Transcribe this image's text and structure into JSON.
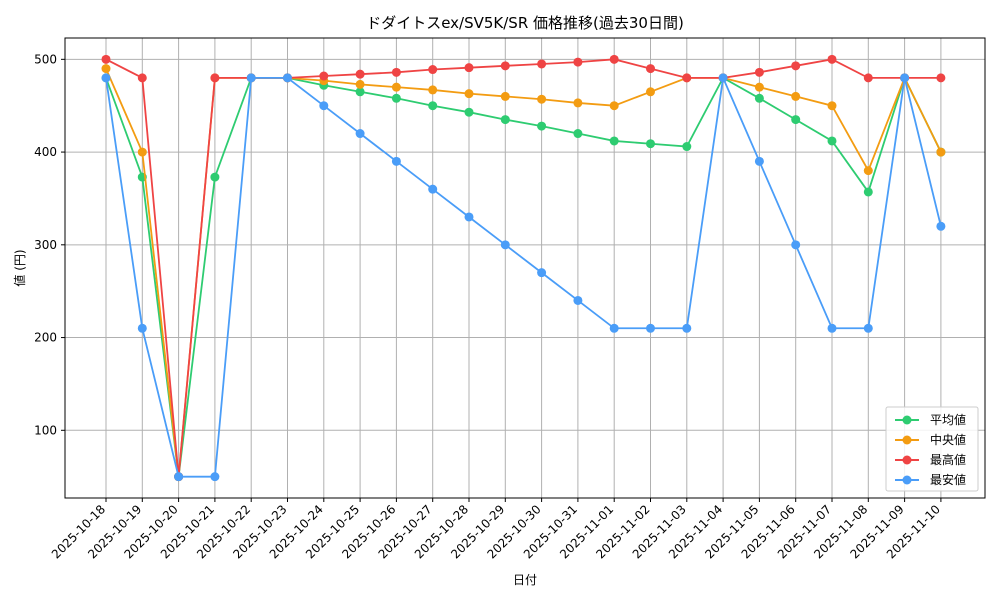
{
  "chart_data": {
    "type": "line",
    "title": "ドダイトスex/SV5K/SR 価格推移(過去30日間)",
    "xlabel": "日付",
    "ylabel": "値 (円)",
    "categories": [
      "2025-10-18",
      "2025-10-19",
      "2025-10-20",
      "2025-10-21",
      "2025-10-22",
      "2025-10-23",
      "2025-10-24",
      "2025-10-25",
      "2025-10-26",
      "2025-10-27",
      "2025-10-28",
      "2025-10-29",
      "2025-10-30",
      "2025-10-31",
      "2025-11-01",
      "2025-11-02",
      "2025-11-03",
      "2025-11-04",
      "2025-11-05",
      "2025-11-06",
      "2025-11-07",
      "2025-11-08",
      "2025-11-09",
      "2025-11-10"
    ],
    "yticks": [
      100,
      200,
      300,
      400,
      500
    ],
    "ylim": [
      27,
      523
    ],
    "grid": true,
    "legend_position": "bottom-right",
    "series": [
      {
        "name": "平均値",
        "color": "#2ecc71",
        "values": [
          480,
          373,
          50,
          373,
          480,
          480,
          472,
          465,
          458,
          450,
          443,
          435,
          428,
          420,
          412,
          409,
          406,
          480,
          458,
          435,
          412,
          357,
          480,
          400
        ]
      },
      {
        "name": "中央値",
        "color": "#f39c12",
        "values": [
          490,
          400,
          50,
          480,
          480,
          480,
          477,
          473,
          470,
          467,
          463,
          460,
          457,
          453,
          450,
          465,
          480,
          480,
          470,
          460,
          450,
          380,
          480,
          400
        ]
      },
      {
        "name": "最高値",
        "color": "#ef4444",
        "values": [
          500,
          480,
          50,
          480,
          480,
          480,
          482,
          484,
          486,
          489,
          491,
          493,
          495,
          497,
          500,
          490,
          480,
          480,
          486,
          493,
          500,
          480,
          480,
          480
        ]
      },
      {
        "name": "最安値",
        "color": "#4a9df8",
        "values": [
          480,
          210,
          50,
          50,
          480,
          480,
          450,
          420,
          390,
          360,
          330,
          300,
          270,
          240,
          210,
          210,
          210,
          480,
          390,
          300,
          210,
          210,
          480,
          320
        ]
      }
    ]
  }
}
